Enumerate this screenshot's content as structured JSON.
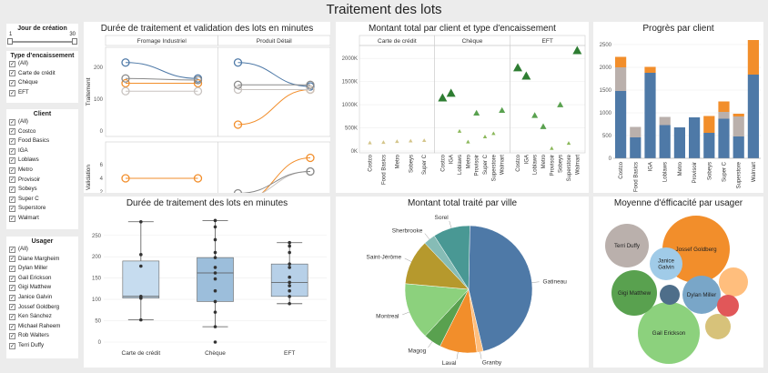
{
  "page_title": "Traitement des lots",
  "filters": {
    "day": {
      "title": "Jour de création",
      "min": "1",
      "max": "30"
    },
    "payment": {
      "title": "Type d'encaissement",
      "items": [
        "(All)",
        "Carte de crédit",
        "Chèque",
        "EFT"
      ]
    },
    "client": {
      "title": "Client",
      "items": [
        "(All)",
        "Costco",
        "Food Basics",
        "IGA",
        "Loblaws",
        "Metro",
        "Provisoir",
        "Sobeys",
        "Super C",
        "Superstore",
        "Walmart"
      ]
    },
    "user": {
      "title": "Usager",
      "items": [
        "(All)",
        "Diane Margheim",
        "Dylan Miller",
        "Gail Erickson",
        "Gigi Matthew",
        "Janice Galvin",
        "Jossef Goldberg",
        "Ken Sánchez",
        "Michael Raheem",
        "Rob Walters",
        "Terri Duffy"
      ]
    }
  },
  "panels": {
    "dumbbell": {
      "title": "Durée de traitement et validation des lots en minutes"
    },
    "amount_by_client": {
      "title": "Montant total par client et type d'encaissement"
    },
    "progress": {
      "title": "Progrès par client"
    },
    "boxplot": {
      "title": "Durée de traitement des lots en minutes"
    },
    "pie": {
      "title": "Montant total traité par ville"
    },
    "bubbles": {
      "title": "Moyenne d'éfficacité par usager"
    }
  },
  "colors": {
    "blue": "#4e79a7",
    "orange": "#f28e2b",
    "gray": "#bab0ac",
    "green": "#59a14f",
    "lightgreen": "#8cd17d"
  },
  "chart_data": [
    {
      "type": "scatter",
      "id": "dumbbell",
      "title": "Durée de traitement et validation des lots en minutes",
      "columns": [
        "Fromage Industriel",
        "Produit Détail"
      ],
      "rows": [
        {
          "label": "Traitement",
          "ylim": [
            0,
            240
          ],
          "ticks": [
            0,
            100,
            200
          ]
        },
        {
          "label": "Validation",
          "ylim": [
            0,
            8
          ],
          "ticks": [
            0,
            2,
            4,
            6
          ]
        }
      ],
      "series": [
        {
          "name": "blue",
          "traitement": [
            [
              215,
              165
            ],
            [
              215,
              140
            ]
          ],
          "validation": [
            [
              0,
              0
            ],
            [
              0,
              0
            ]
          ]
        },
        {
          "name": "orange",
          "traitement": [
            [
              150,
              150
            ],
            [
              20,
              130
            ]
          ],
          "validation": [
            [
              4,
              4
            ],
            [
              0.5,
              7
            ]
          ]
        },
        {
          "name": "gray",
          "traitement": [
            [
              125,
              125
            ],
            [
              130,
              130
            ]
          ],
          "validation": [
            null,
            [
              1,
              5
            ]
          ]
        },
        {
          "name": "darkgray",
          "traitement": [
            [
              165,
              160
            ],
            [
              145,
              145
            ]
          ],
          "validation": [
            null,
            [
              1.8,
              5
            ]
          ]
        }
      ]
    },
    {
      "type": "scatter",
      "id": "amount_by_client",
      "title": "Montant total par client et type d'encaissement",
      "columns": [
        "Carte de crédit",
        "Chèque",
        "EFT"
      ],
      "categories": {
        "Carte de crédit": [
          "Costco",
          "Food Basics",
          "Metro",
          "Sobeys",
          "Super C"
        ],
        "Chèque": [
          "Costco",
          "IGA",
          "Loblaws",
          "Metro",
          "Provisoir",
          "Super C",
          "Superstore",
          "Walmart"
        ],
        "EFT": [
          "Costco",
          "IGA",
          "Loblaws",
          "Metro",
          "Provisoir",
          "Sobeys",
          "Superstore",
          "Walmart"
        ]
      },
      "yticks": [
        "0K",
        "500K",
        "1000K",
        "1500K",
        "2000K"
      ],
      "ylim": [
        0,
        2200000
      ],
      "values": {
        "Carte de crédit": [
          180000,
          190000,
          210000,
          220000,
          230000
        ],
        "Chèque": [
          1150000,
          1250000,
          430000,
          200000,
          820000,
          310000,
          380000,
          880000
        ],
        "EFT": [
          1800000,
          1620000,
          770000,
          530000,
          60000,
          1000000,
          170000,
          2170000
        ]
      }
    },
    {
      "type": "bar",
      "id": "progress",
      "title": "Progrès par client",
      "categories": [
        "Costco",
        "Food Basics",
        "IGA",
        "Loblaws",
        "Metro",
        "Provisoir",
        "Sobeys",
        "Super C",
        "Superstore",
        "Walmart"
      ],
      "yticks": [
        "0",
        "500",
        "1000",
        "1500",
        "2000",
        "2500"
      ],
      "ylim": [
        0,
        2600
      ],
      "series": [
        {
          "name": "blue",
          "values": [
            1480,
            460,
            1880,
            730,
            680,
            900,
            560,
            870,
            480,
            1840
          ]
        },
        {
          "name": "gray",
          "values": [
            520,
            230,
            0,
            180,
            0,
            0,
            0,
            150,
            440,
            0
          ]
        },
        {
          "name": "orange",
          "values": [
            230,
            0,
            130,
            0,
            0,
            0,
            370,
            230,
            60,
            760
          ]
        }
      ]
    },
    {
      "type": "box",
      "id": "boxplot",
      "title": "Durée de traitement des lots en minutes",
      "categories": [
        "Carte de crédit",
        "Chèque",
        "EFT"
      ],
      "yticks": [
        0,
        50,
        100,
        150,
        200,
        250
      ],
      "ylim": [
        0,
        290
      ],
      "boxes": [
        {
          "min": 52,
          "q1": 103,
          "median": 107,
          "q3": 190,
          "max": 282,
          "points": [
            52,
            103,
            107,
            178,
            205,
            282
          ]
        },
        {
          "min": 36,
          "q1": 95,
          "median": 162,
          "q3": 198,
          "max": 285,
          "points": [
            0,
            36,
            70,
            95,
            120,
            148,
            162,
            175,
            198,
            210,
            240,
            270,
            285
          ]
        },
        {
          "min": 90,
          "q1": 107,
          "median": 140,
          "q3": 183,
          "max": 233,
          "points": [
            90,
            107,
            120,
            132,
            140,
            152,
            175,
            183,
            210,
            225,
            233
          ]
        }
      ]
    },
    {
      "type": "pie",
      "id": "pie",
      "title": "Montant total traité par ville",
      "slices": [
        {
          "label": "Gatineau",
          "value": 46,
          "color": "#4e79a7"
        },
        {
          "label": "Granby",
          "value": 1.6,
          "color": "#ffbe7d"
        },
        {
          "label": "Laval",
          "value": 9.5,
          "color": "#f28e2b"
        },
        {
          "label": "Magog",
          "value": 4.5,
          "color": "#59a14f"
        },
        {
          "label": "Montreal",
          "value": 14.5,
          "color": "#8cd17d"
        },
        {
          "label": "Saint-Jérôme",
          "value": 11.5,
          "color": "#b6992d"
        },
        {
          "label": "Sherbrooke",
          "value": 3,
          "color": "#86bcb6"
        },
        {
          "label": "Sorel",
          "value": 9.4,
          "color": "#499894"
        }
      ]
    },
    {
      "type": "bubble",
      "id": "bubbles",
      "title": "Moyenne d'éfficacité par usager",
      "bubbles": [
        {
          "label": "Jossef Goldberg",
          "r": 37,
          "color": "#f28e2b"
        },
        {
          "label": "Gail Erickson",
          "r": 34,
          "color": "#8cd17d"
        },
        {
          "label": "Gigi Matthew",
          "r": 25,
          "color": "#59a14f"
        },
        {
          "label": "Terri Duffy",
          "r": 24,
          "color": "#bab0ac"
        },
        {
          "label": "Dylan Miller",
          "r": 21,
          "color": "#79a6c8"
        },
        {
          "label": "Janice Galvin",
          "r": 18,
          "color": "#a0cbe8"
        },
        {
          "label": "",
          "r": 16,
          "color": "#ffbe7d"
        },
        {
          "label": "",
          "r": 14,
          "color": "#d7c27a"
        },
        {
          "label": "",
          "r": 12,
          "color": "#e15759"
        },
        {
          "label": "",
          "r": 11,
          "color": "#4e6e8a"
        }
      ]
    }
  ]
}
